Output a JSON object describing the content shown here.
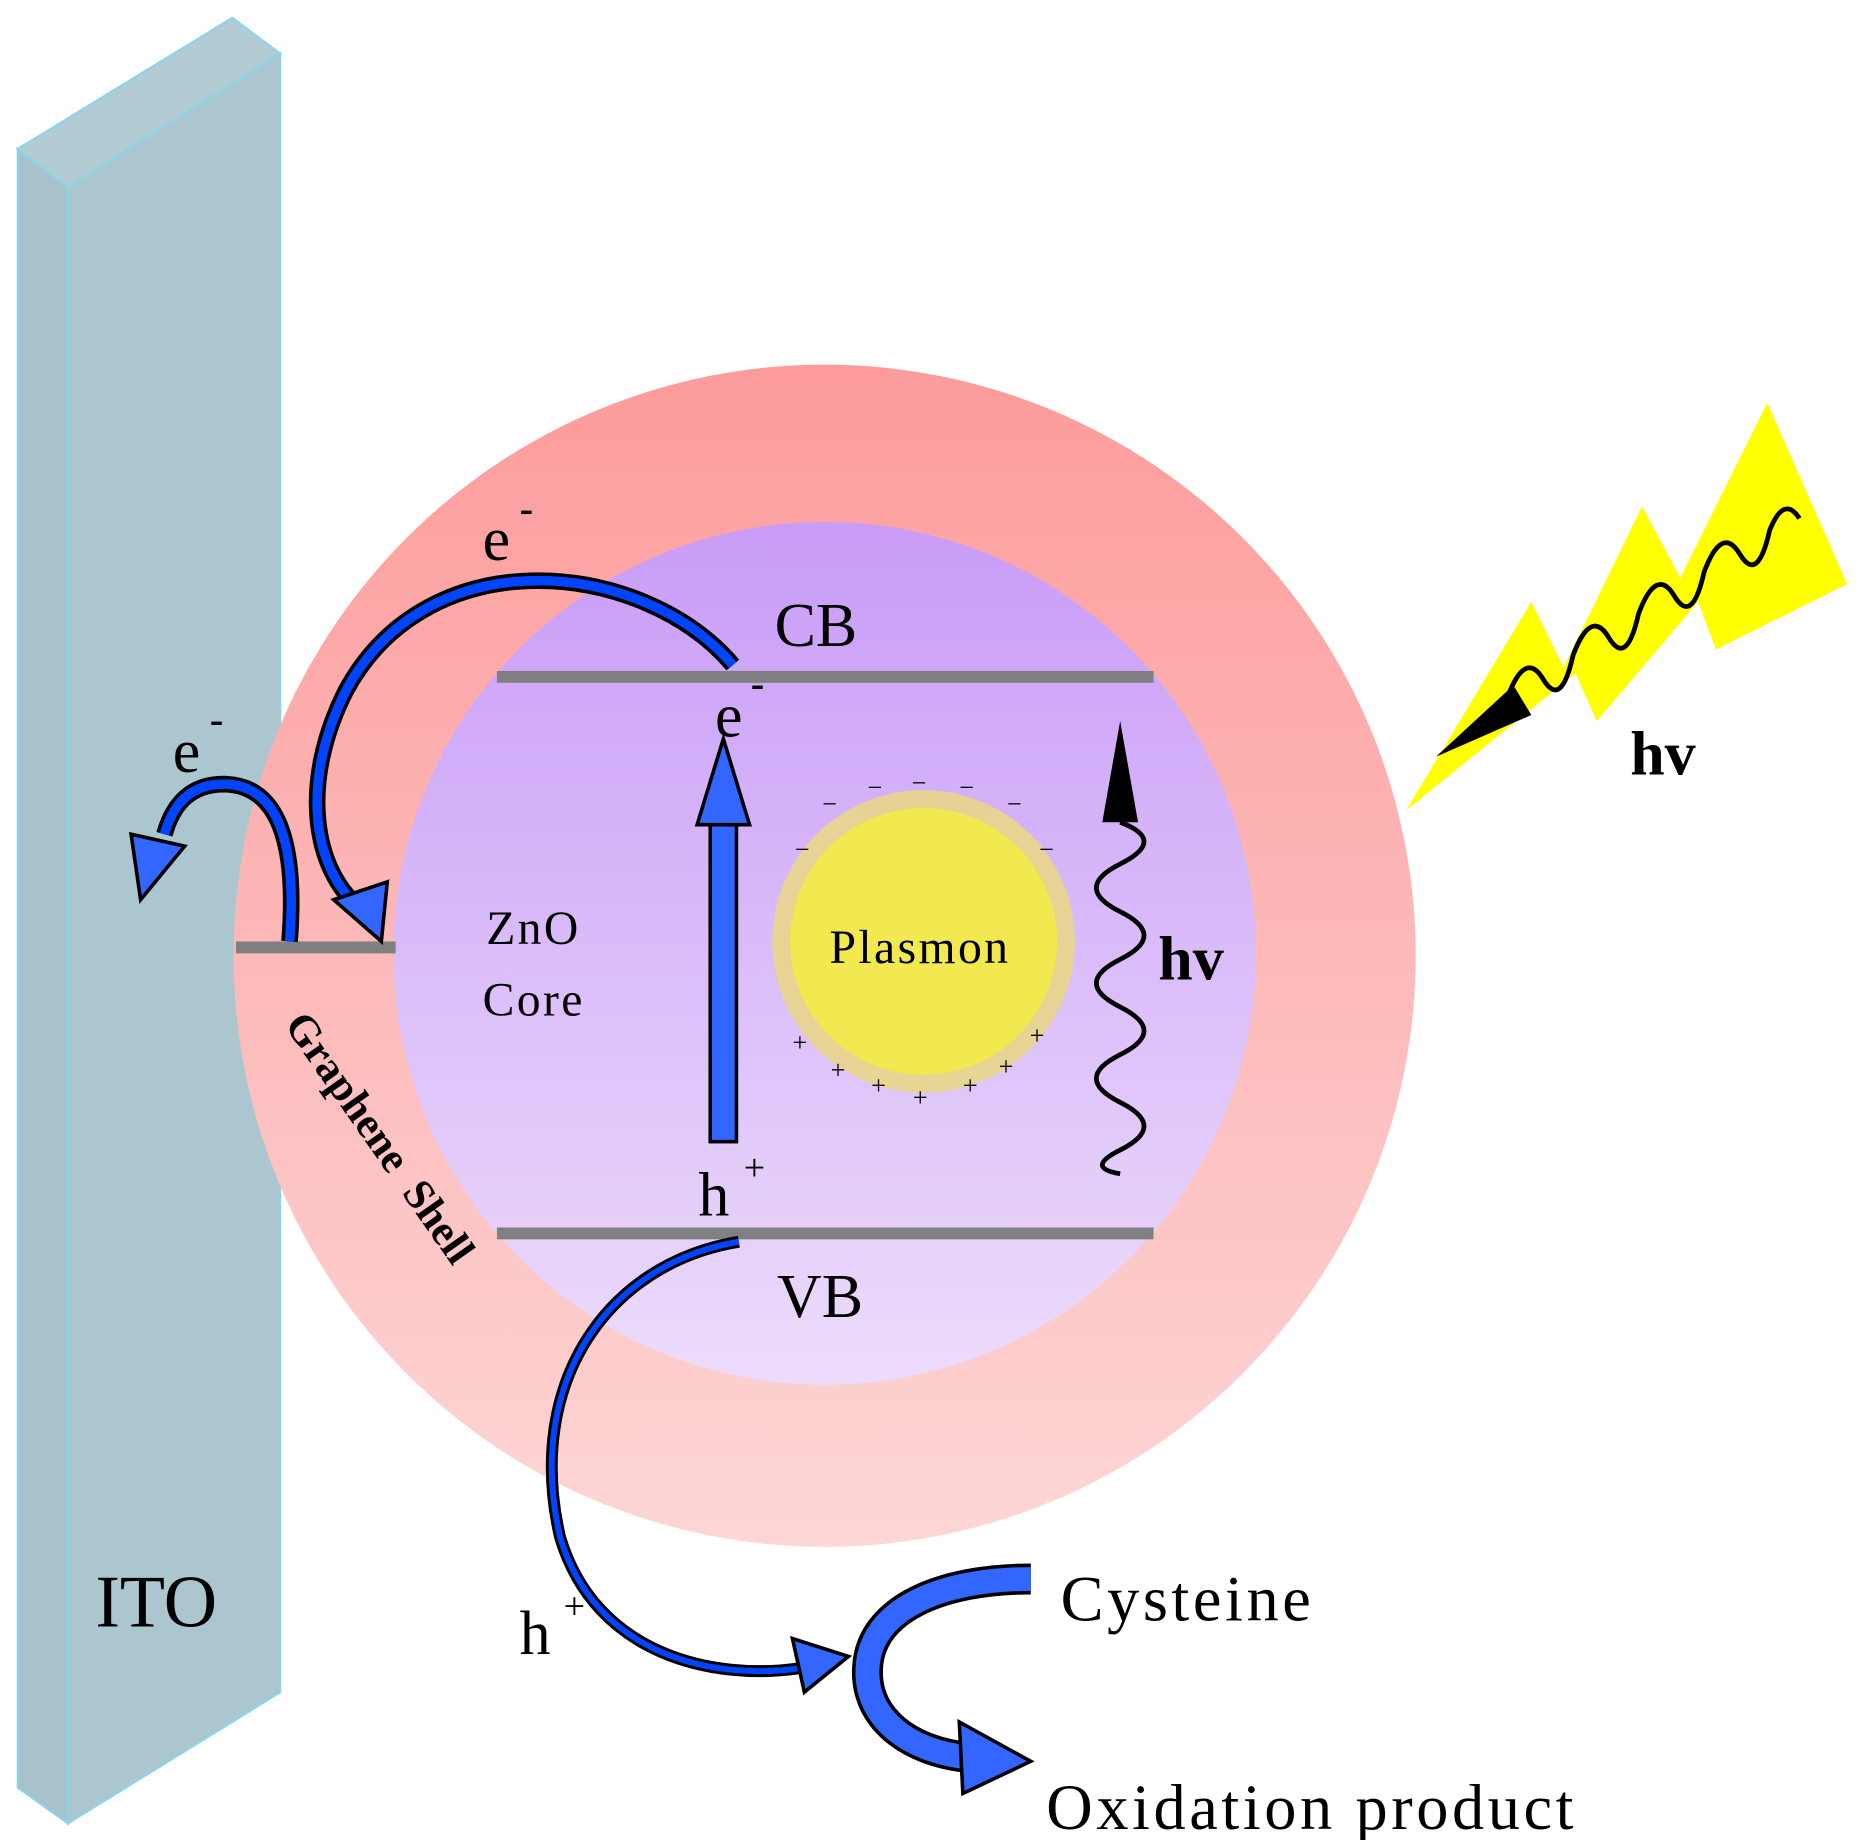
{
  "labels": {
    "ito": "ITO",
    "cb": "CB",
    "vb": "VB",
    "core": [
      "ZnO",
      "Core"
    ],
    "shell": "Graphene  Shell",
    "plasmon": "Plasmon",
    "hv_light": "hv",
    "hv_emit": "hv",
    "electron": "e",
    "minus": "-",
    "hole": "h",
    "plus": "+",
    "cysteine": "Cysteine",
    "oxidation_product": "Oxidation product",
    "plasmon_minus": "−",
    "plasmon_plus": "+"
  },
  "colors": {
    "ito": "#abc6cf",
    "shell_top": "#fd9b9b",
    "shell_bottom": "#fdd4d4",
    "core_top": "#c99cf7",
    "core_bottom": "#eadafb",
    "plasmon": "#f2e84f",
    "plasmon_ring": "#e8d68a",
    "arrow": "#3366ff",
    "level": "#808080",
    "light": "#ffff00"
  }
}
